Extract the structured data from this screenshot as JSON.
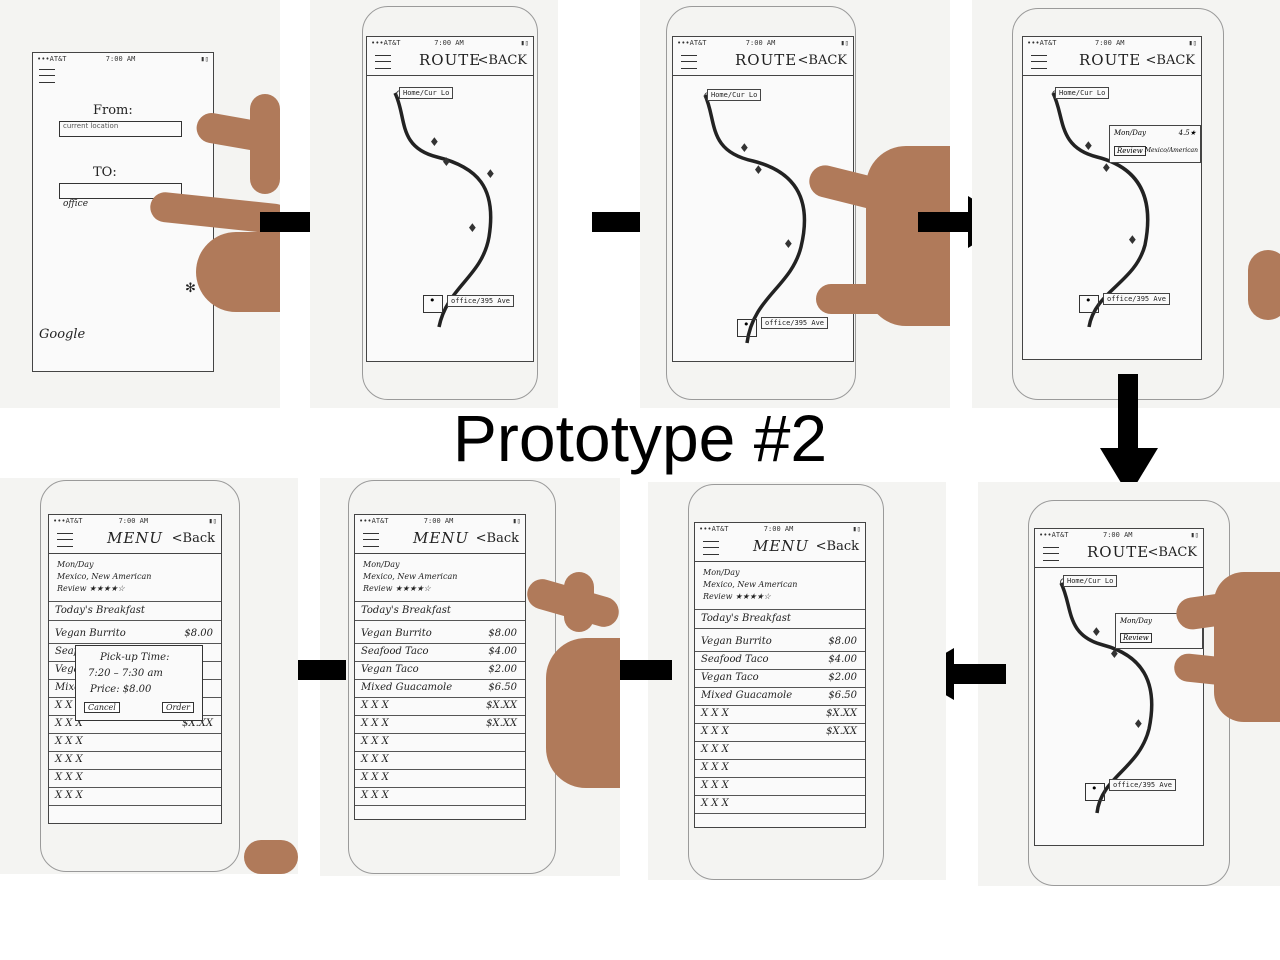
{
  "title": "Prototype #2",
  "status_bar": {
    "carrier": "•••AT&T",
    "time": "7:00 AM"
  },
  "screen1": {
    "from_label": "From:",
    "from_value": "current location",
    "to_label": "TO:",
    "to_value": "office",
    "brand": "Google"
  },
  "route": {
    "title": "ROUTE",
    "back": "<BACK",
    "origin": "Home/Cur Lo",
    "destination": "office/395 Ave",
    "card_hours": "Mon/Day",
    "card_rating": "4.5★",
    "card_review": "Review",
    "card_cuisine": "Mexico/American"
  },
  "menu": {
    "title": "MENU",
    "back": "<Back",
    "hours": "Mon/Day",
    "cuisine": "Mexico, New American",
    "review": "Review ★★★★☆",
    "section": "Today's Breakfast",
    "items": [
      {
        "name": "Vegan Burrito",
        "price": "$8.00"
      },
      {
        "name": "Seafood Taco",
        "price": "$4.00"
      },
      {
        "name": "Vegan Taco",
        "price": "$2.00"
      },
      {
        "name": "Mixed Guacamole",
        "price": "$6.50"
      },
      {
        "name": "X X X",
        "price": "$X.XX"
      },
      {
        "name": "X X X",
        "price": "$X.XX"
      },
      {
        "name": "X X X",
        "price": ""
      },
      {
        "name": "X X X",
        "price": ""
      },
      {
        "name": "X X X",
        "price": ""
      },
      {
        "name": "X X X",
        "price": ""
      }
    ],
    "popup": {
      "pickup_label": "Pick-up Time:",
      "pickup_value": "7:20 – 7:30 am",
      "price": "Price: $8.00",
      "cancel": "Cancel",
      "order": "Order"
    }
  }
}
